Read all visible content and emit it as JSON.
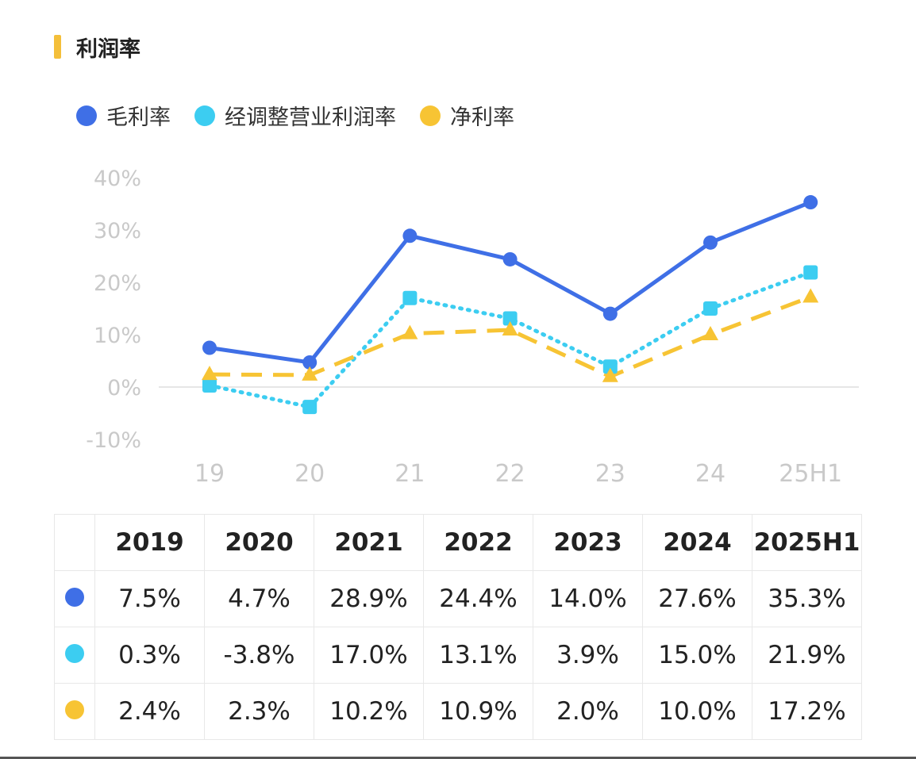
{
  "title": "利润率",
  "colors": {
    "accent": "#f4bf3a"
  },
  "chart_data": {
    "type": "line",
    "categories": [
      "19",
      "20",
      "21",
      "22",
      "23",
      "24",
      "25H1"
    ],
    "ylim": [
      -10,
      40
    ],
    "yticks": [
      "40%",
      "30%",
      "20%",
      "10%",
      "0%",
      "-10%"
    ],
    "ytick_values": [
      40,
      30,
      20,
      10,
      0,
      -10
    ],
    "legend_position": "top-left",
    "series": [
      {
        "name": "毛利率",
        "color": "#3f6fe6",
        "style": "solid",
        "marker": "circle",
        "values": [
          7.5,
          4.7,
          28.9,
          24.4,
          14.0,
          27.6,
          35.3
        ]
      },
      {
        "name": "经调整营业利润率",
        "color": "#3ccdf1",
        "style": "dotted",
        "marker": "square",
        "values": [
          0.3,
          -3.8,
          17.0,
          13.1,
          3.9,
          15.0,
          21.9
        ]
      },
      {
        "name": "净利率",
        "color": "#f7c434",
        "style": "dashed",
        "marker": "triangle",
        "values": [
          2.4,
          2.3,
          10.2,
          10.9,
          2.0,
          10.0,
          17.2
        ]
      }
    ]
  },
  "table": {
    "headers": [
      "2019",
      "2020",
      "2021",
      "2022",
      "2023",
      "2024",
      "2025H1"
    ],
    "rows": [
      {
        "series": "毛利率",
        "color": "#3f6fe6",
        "cells": [
          "7.5%",
          "4.7%",
          "28.9%",
          "24.4%",
          "14.0%",
          "27.6%",
          "35.3%"
        ]
      },
      {
        "series": "经调整营业利润率",
        "color": "#3ccdf1",
        "cells": [
          "0.3%",
          "-3.8%",
          "17.0%",
          "13.1%",
          "3.9%",
          "15.0%",
          "21.9%"
        ]
      },
      {
        "series": "净利率",
        "color": "#f7c434",
        "cells": [
          "2.4%",
          "2.3%",
          "10.2%",
          "10.9%",
          "2.0%",
          "10.0%",
          "17.2%"
        ]
      }
    ]
  }
}
